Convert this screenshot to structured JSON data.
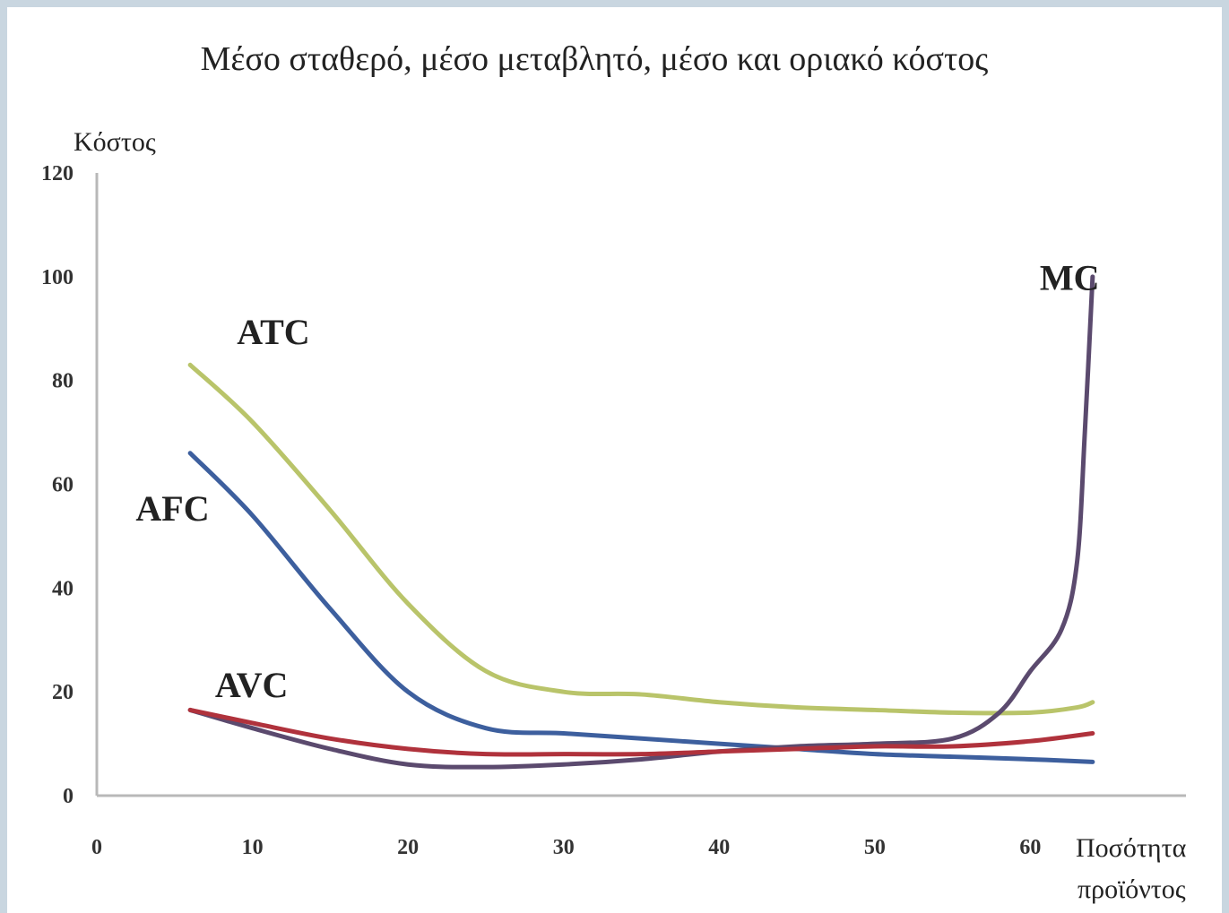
{
  "chart_data": {
    "type": "line",
    "title": "Μέσο σταθερό, μέσο μεταβλητό, μέσο και οριακό κόστος",
    "ylabel": "Κόστος",
    "xlabel": [
      "Ποσότητα",
      "προϊόντος"
    ],
    "xlim": [
      0,
      70
    ],
    "ylim": [
      0,
      120
    ],
    "x_ticks": [
      0,
      10,
      20,
      30,
      40,
      50,
      60
    ],
    "y_ticks": [
      0,
      20,
      40,
      60,
      80,
      100,
      120
    ],
    "grid": false,
    "series": [
      {
        "name": "ATC",
        "color": "#b9c46a",
        "x": [
          6,
          10,
          15,
          20,
          25,
          30,
          35,
          40,
          45,
          50,
          55,
          60,
          63,
          64
        ],
        "y": [
          83,
          72,
          55,
          37,
          24,
          20,
          19.5,
          18,
          17,
          16.5,
          16,
          16,
          17,
          18
        ]
      },
      {
        "name": "AFC",
        "color": "#3d5f9e",
        "x": [
          6,
          10,
          15,
          20,
          25,
          30,
          35,
          40,
          45,
          50,
          55,
          60,
          64
        ],
        "y": [
          66,
          54,
          36,
          20,
          13,
          12,
          11,
          10,
          9,
          8,
          7.5,
          7,
          6.5
        ]
      },
      {
        "name": "AVC",
        "color": "#b0323c",
        "x": [
          6,
          10,
          15,
          20,
          25,
          30,
          35,
          40,
          45,
          50,
          55,
          60,
          64
        ],
        "y": [
          16.5,
          14,
          11,
          9,
          8,
          8,
          8,
          8.5,
          9,
          9.5,
          9.5,
          10.5,
          12
        ]
      },
      {
        "name": "MC",
        "color": "#5b4a6e",
        "x": [
          6,
          10,
          15,
          20,
          25,
          30,
          35,
          40,
          45,
          50,
          55,
          58,
          60,
          62,
          63,
          63.5,
          64
        ],
        "y": [
          16.5,
          13,
          9,
          6,
          5.5,
          6,
          7,
          8.5,
          9.5,
          10,
          11,
          16,
          24,
          32,
          45,
          70,
          100
        ]
      }
    ]
  }
}
